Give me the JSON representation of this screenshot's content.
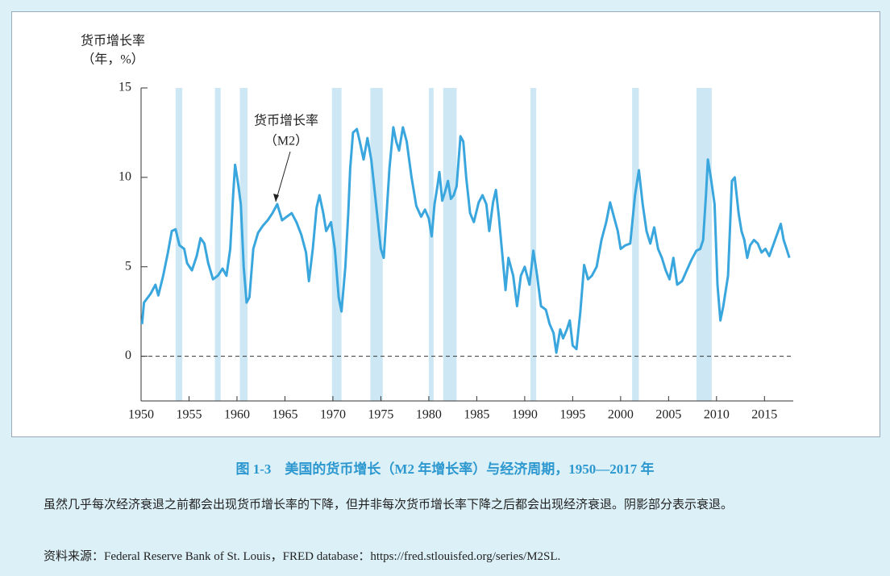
{
  "chart_data": {
    "type": "line",
    "y_label": [
      "货币增长率",
      "（年，%）"
    ],
    "annotation": [
      "货币增长率",
      "（M2）"
    ],
    "caption": "图 1-3　美国的货币增长（M2 年增长率）与经济周期，1950—2017 年",
    "note": "虽然几乎每次经济衰退之前都会出现货币增长率的下降，但并非每次货币增长率下降之后都会出现经济衰退。阴影部分表示衰退。",
    "source": "资料来源：Federal Reserve Bank of St. Louis，FRED database：https://fred.stlouisfed.org/series/M2SL.",
    "color": "#3aa6de",
    "recession_color": "#cde8f4",
    "xlim": [
      1950,
      2018
    ],
    "ylim": [
      -2.5,
      15
    ],
    "xticks": [
      1950,
      1955,
      1960,
      1965,
      1970,
      1975,
      1980,
      1985,
      1990,
      1995,
      2000,
      2005,
      2010,
      2015
    ],
    "yticks": [
      0,
      5,
      10,
      15
    ],
    "reference_line": 0,
    "recessions": [
      [
        1953.6,
        1954.3
      ],
      [
        1957.7,
        1958.3
      ],
      [
        1960.3,
        1961.1
      ],
      [
        1969.9,
        1970.9
      ],
      [
        1973.9,
        1975.2
      ],
      [
        1980.0,
        1980.5
      ],
      [
        1981.5,
        1982.9
      ],
      [
        1990.6,
        1991.2
      ],
      [
        2001.2,
        2001.9
      ],
      [
        2007.9,
        2009.5
      ]
    ],
    "x": [
      1950.1,
      1950.3,
      1951,
      1951.5,
      1951.8,
      1952.3,
      1952.8,
      1953.2,
      1953.6,
      1954,
      1954.5,
      1954.8,
      1955.3,
      1955.8,
      1956.2,
      1956.6,
      1957,
      1957.5,
      1958,
      1958.5,
      1958.9,
      1959.3,
      1959.6,
      1959.8,
      1960.1,
      1960.4,
      1960.7,
      1961,
      1961.3,
      1961.7,
      1962.2,
      1962.7,
      1963.2,
      1963.7,
      1964.2,
      1964.7,
      1965.2,
      1965.7,
      1966.2,
      1966.7,
      1967.2,
      1967.5,
      1967.9,
      1968.3,
      1968.6,
      1969,
      1969.3,
      1969.8,
      1970.2,
      1970.6,
      1970.9,
      1971.3,
      1971.6,
      1971.8,
      1972.1,
      1972.5,
      1972.8,
      1973.2,
      1973.6,
      1974,
      1974.4,
      1974.8,
      1975,
      1975.3,
      1975.6,
      1975.9,
      1976.3,
      1976.6,
      1976.9,
      1977.3,
      1977.7,
      1978.2,
      1978.7,
      1979.2,
      1979.6,
      1980,
      1980.3,
      1980.6,
      1980.9,
      1981.1,
      1981.4,
      1981.7,
      1982,
      1982.3,
      1982.6,
      1982.9,
      1983.3,
      1983.6,
      1983.9,
      1984.3,
      1984.7,
      1985.2,
      1985.6,
      1986,
      1986.3,
      1986.7,
      1987,
      1987.3,
      1987.7,
      1988,
      1988.3,
      1988.8,
      1989.2,
      1989.6,
      1990,
      1990.5,
      1990.9,
      1991.3,
      1991.7,
      1992.2,
      1992.6,
      1993,
      1993.3,
      1993.7,
      1994,
      1994.4,
      1994.7,
      1995,
      1995.4,
      1995.8,
      1996.2,
      1996.6,
      1997,
      1997.5,
      1998,
      1998.5,
      1998.9,
      1999.3,
      1999.7,
      2000,
      2000.5,
      2001,
      2001.5,
      2001.9,
      2002.3,
      2002.7,
      2003.1,
      2003.5,
      2003.9,
      2004.3,
      2004.7,
      2005.1,
      2005.5,
      2005.9,
      2006.4,
      2006.9,
      2007.4,
      2007.9,
      2008.3,
      2008.6,
      2008.9,
      2009.1,
      2009.4,
      2009.8,
      2010.1,
      2010.4,
      2010.7,
      2011.2,
      2011.6,
      2011.9,
      2012.3,
      2012.6,
      2012.9,
      2013.2,
      2013.5,
      2013.9,
      2014.3,
      2014.7,
      2015.1,
      2015.5,
      2015.9,
      2016.3,
      2016.7,
      2017,
      2017.3,
      2017.6
    ],
    "values": [
      1.8,
      3,
      3.5,
      4,
      3.4,
      4.5,
      5.8,
      7,
      7.1,
      6.2,
      6,
      5.2,
      4.8,
      5.6,
      6.6,
      6.3,
      5.2,
      4.3,
      4.5,
      4.9,
      4.5,
      6,
      9,
      10.7,
      9.7,
      8.5,
      5,
      3,
      3.3,
      6,
      6.9,
      7.3,
      7.6,
      8,
      8.5,
      7.6,
      7.8,
      8,
      7.5,
      6.8,
      5.8,
      4.2,
      6,
      8.3,
      9,
      8,
      7,
      7.5,
      6,
      3.3,
      2.5,
      5,
      8,
      10.5,
      12.5,
      12.7,
      12,
      11,
      12.2,
      11,
      9,
      7,
      6,
      5.5,
      8,
      10.5,
      12.8,
      12,
      11.5,
      12.8,
      12,
      10,
      8.4,
      7.8,
      8.2,
      7.7,
      6.7,
      8.5,
      9.5,
      10.3,
      8.7,
      9.2,
      9.8,
      8.8,
      9,
      9.5,
      12.3,
      12,
      10,
      8,
      7.5,
      8.6,
      9,
      8.5,
      7,
      8.6,
      9.3,
      7.8,
      5.5,
      3.7,
      5.5,
      4.5,
      2.8,
      4.5,
      5,
      4,
      5.9,
      4.5,
      2.8,
      2.6,
      1.8,
      1.3,
      0.2,
      1.5,
      1,
      1.5,
      2,
      0.6,
      0.4,
      2.5,
      5.1,
      4.3,
      4.5,
      5,
      6.5,
      7.5,
      8.6,
      7.8,
      7,
      6,
      6.2,
      6.3,
      9,
      10.4,
      8.5,
      7,
      6.3,
      7.2,
      6,
      5.5,
      4.8,
      4.3,
      5.5,
      4,
      4.2,
      4.8,
      5.4,
      5.9,
      6,
      6.5,
      9,
      11,
      10,
      8.5,
      4,
      2,
      2.8,
      4.5,
      9.8,
      10,
      8,
      7,
      6.5,
      5.5,
      6.2,
      6.5,
      6.3,
      5.8,
      6,
      5.6,
      6.2,
      6.8,
      7.4,
      6.5,
      6,
      5.5
    ]
  }
}
